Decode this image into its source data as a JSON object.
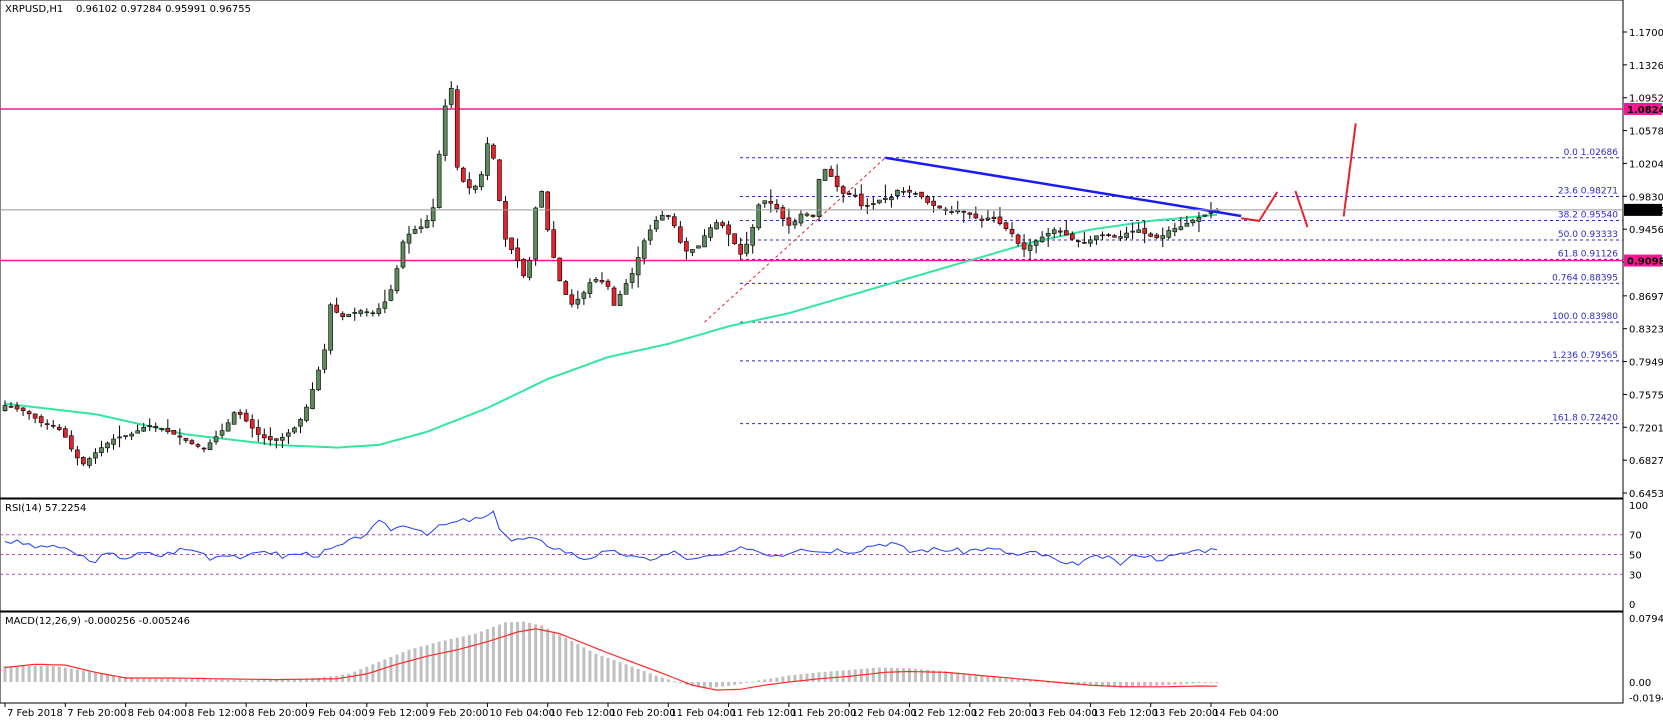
{
  "chart_data": {
    "type": "candlestick",
    "symbol": "XRPUSD,H1",
    "ohlc": "0.96102 0.97284 0.95991 0.96755",
    "current_price": 0.96755,
    "current_price_label": "0.96755",
    "colors": {
      "bull": "#5b8a5b",
      "bear": "#e8212b",
      "ma": "#33e6a0",
      "hline": "#ff1493",
      "trend": "#1a1aff",
      "fib": "#2b2bc8",
      "rsi": "#1e3cff",
      "macd_signal": "#ff2a2a",
      "macd_hist": "#c0c0c0",
      "arrow": "#e8212b"
    },
    "price_axis": {
      "ylim": [
        0.6453,
        1.1963
      ],
      "ticks": [
        "1.17000",
        "1.13260",
        "1.09520",
        "1.05780",
        "1.02040",
        "0.98300",
        "0.94560",
        "0.90820",
        "0.86970",
        "0.83230",
        "0.79490",
        "0.75750",
        "0.72010",
        "0.68270",
        "0.64530"
      ]
    },
    "horizontal_lines": [
      {
        "value": 1.08242,
        "label": "1.08242"
      },
      {
        "value": 0.90988,
        "label": "0.90988"
      }
    ],
    "fib_levels": [
      {
        "ratio": "0.0",
        "value": 1.02686,
        "text": "0.0  1.02686"
      },
      {
        "ratio": "23.6",
        "value": 0.98271,
        "text": "23.6  0.98271"
      },
      {
        "ratio": "38.2",
        "value": 0.9554,
        "text": "38.2  0.95540"
      },
      {
        "ratio": "50.0",
        "value": 0.93333,
        "text": "50.0  0.93333"
      },
      {
        "ratio": "61.8",
        "value": 0.91126,
        "text": "61.8  0.91126"
      },
      {
        "ratio": "0.764",
        "value": 0.88395,
        "text": "0.764  0.88395"
      },
      {
        "ratio": "100.0",
        "value": 0.8398,
        "text": "100.0  0.83980"
      },
      {
        "ratio": "1.236",
        "value": 0.79565,
        "text": "1.236  0.79565"
      },
      {
        "ratio": "161.8",
        "value": 0.7242,
        "text": "161.8  0.72420"
      }
    ],
    "fib_swing": {
      "from": {
        "bar": 116,
        "value": 0.8398
      },
      "to": {
        "bar": 146,
        "value": 1.02686
      }
    },
    "trendline": {
      "from": {
        "bar": 146,
        "value": 1.02686
      },
      "to": {
        "bar": 205,
        "value": 0.9606
      }
    },
    "forecast_path": [
      {
        "bar": 205,
        "value": 0.958
      },
      {
        "bar": 208,
        "value": 0.955
      },
      {
        "bar": 211,
        "value": 0.988
      }
    ],
    "forecast_segments": [
      [
        {
          "bar": 214,
          "value": 0.989
        },
        {
          "bar": 216,
          "value": 0.948
        }
      ],
      [
        {
          "bar": 222,
          "value": 0.96
        },
        {
          "bar": 224,
          "value": 1.066
        }
      ]
    ],
    "x_axis": {
      "ticks": [
        {
          "bar": 0,
          "label": "7 Feb 2018"
        },
        {
          "bar": 10,
          "label": "7 Feb 20:00"
        },
        {
          "bar": 20,
          "label": "8 Feb 04:00"
        },
        {
          "bar": 30,
          "label": "8 Feb 12:00"
        },
        {
          "bar": 40,
          "label": "8 Feb 20:00"
        },
        {
          "bar": 50,
          "label": "9 Feb 04:00"
        },
        {
          "bar": 60,
          "label": "9 Feb 12:00"
        },
        {
          "bar": 70,
          "label": "9 Feb 20:00"
        },
        {
          "bar": 80,
          "label": "10 Feb 04:00"
        },
        {
          "bar": 90,
          "label": "10 Feb 12:00"
        },
        {
          "bar": 100,
          "label": "10 Feb 20:00"
        },
        {
          "bar": 110,
          "label": "11 Feb 04:00"
        },
        {
          "bar": 120,
          "label": "11 Feb 12:00"
        },
        {
          "bar": 130,
          "label": "11 Feb 20:00"
        },
        {
          "bar": 140,
          "label": "12 Feb 04:00"
        },
        {
          "bar": 150,
          "label": "12 Feb 12:00"
        },
        {
          "bar": 160,
          "label": "12 Feb 20:00"
        },
        {
          "bar": 170,
          "label": "13 Feb 04:00"
        },
        {
          "bar": 180,
          "label": "13 Feb 12:00"
        },
        {
          "bar": 190,
          "label": "13 Feb 20:00"
        },
        {
          "bar": 200,
          "label": "14 Feb 04:00"
        }
      ]
    },
    "rsi": {
      "label": "RSI(14) 57.2254",
      "ylim": [
        0,
        100
      ],
      "ticks": [
        "100",
        "70",
        "50",
        "30",
        "0"
      ],
      "levels": [
        70,
        50,
        30
      ],
      "anchors": [
        [
          0,
          64
        ],
        [
          4,
          60
        ],
        [
          6,
          56
        ],
        [
          8,
          60
        ],
        [
          10,
          54
        ],
        [
          13,
          48
        ],
        [
          14,
          42
        ],
        [
          17,
          50
        ],
        [
          20,
          47
        ],
        [
          23,
          51
        ],
        [
          26,
          49
        ],
        [
          29,
          55
        ],
        [
          32,
          54
        ],
        [
          34,
          47
        ],
        [
          37,
          51
        ],
        [
          40,
          46
        ],
        [
          43,
          55
        ],
        [
          46,
          48
        ],
        [
          49,
          51
        ],
        [
          52,
          50
        ],
        [
          55,
          57
        ],
        [
          58,
          65
        ],
        [
          61,
          76
        ],
        [
          62,
          82
        ],
        [
          64,
          76
        ],
        [
          67,
          80
        ],
        [
          70,
          72
        ],
        [
          73,
          80
        ],
        [
          76,
          84
        ],
        [
          79,
          86
        ],
        [
          81,
          91
        ],
        [
          82,
          78
        ],
        [
          84,
          64
        ],
        [
          87,
          66
        ],
        [
          90,
          60
        ],
        [
          93,
          53
        ],
        [
          96,
          46
        ],
        [
          99,
          51
        ],
        [
          102,
          52
        ],
        [
          105,
          45
        ],
        [
          108,
          47
        ],
        [
          111,
          52
        ],
        [
          114,
          44
        ],
        [
          117,
          48
        ],
        [
          120,
          50
        ],
        [
          123,
          58
        ],
        [
          126,
          51
        ],
        [
          129,
          50
        ],
        [
          132,
          58
        ],
        [
          135,
          53
        ],
        [
          138,
          55
        ],
        [
          141,
          54
        ],
        [
          144,
          60
        ],
        [
          147,
          62
        ],
        [
          150,
          53
        ],
        [
          153,
          55
        ],
        [
          156,
          55
        ],
        [
          159,
          53
        ],
        [
          162,
          56
        ],
        [
          165,
          54
        ],
        [
          168,
          49
        ],
        [
          171,
          52
        ],
        [
          174,
          45
        ],
        [
          176,
          38
        ],
        [
          179,
          44
        ],
        [
          182,
          48
        ],
        [
          185,
          41
        ],
        [
          188,
          51
        ],
        [
          191,
          46
        ],
        [
          194,
          48
        ],
        [
          197,
          54
        ],
        [
          200,
          55
        ],
        [
          201,
          57.2254
        ]
      ]
    },
    "macd": {
      "label": "MACD(12,26,9) -0.000256 -0.005246",
      "ylim": [
        -0.0194,
        0.0828
      ],
      "ticks": [
        "0.079422",
        "0.00",
        "-0.019405"
      ],
      "main_anchors": [
        [
          0,
          0.02
        ],
        [
          8,
          0.02
        ],
        [
          15,
          0.012
        ],
        [
          22,
          0.004
        ],
        [
          30,
          0.004
        ],
        [
          40,
          0.002
        ],
        [
          52,
          0.005
        ],
        [
          57,
          0.01
        ],
        [
          62,
          0.025
        ],
        [
          67,
          0.04
        ],
        [
          72,
          0.05
        ],
        [
          78,
          0.06
        ],
        [
          83,
          0.074
        ],
        [
          86,
          0.075
        ],
        [
          89,
          0.07
        ],
        [
          93,
          0.055
        ],
        [
          98,
          0.035
        ],
        [
          103,
          0.022
        ],
        [
          108,
          0.008
        ],
        [
          113,
          -0.004
        ],
        [
          116,
          -0.008
        ],
        [
          120,
          -0.005
        ],
        [
          125,
          0.002
        ],
        [
          130,
          0.008
        ],
        [
          135,
          0.012
        ],
        [
          140,
          0.015
        ],
        [
          145,
          0.018
        ],
        [
          150,
          0.017
        ],
        [
          155,
          0.014
        ],
        [
          160,
          0.01
        ],
        [
          165,
          0.006
        ],
        [
          170,
          0.003
        ],
        [
          175,
          -0.002
        ],
        [
          180,
          -0.005
        ],
        [
          185,
          -0.007
        ],
        [
          190,
          -0.005
        ],
        [
          195,
          -0.003
        ],
        [
          200,
          0.0
        ],
        [
          201,
          -0.000256
        ]
      ],
      "signal_anchors": [
        [
          0,
          0.018
        ],
        [
          5,
          0.022
        ],
        [
          10,
          0.021
        ],
        [
          15,
          0.012
        ],
        [
          20,
          0.005
        ],
        [
          28,
          0.005
        ],
        [
          35,
          0.004
        ],
        [
          45,
          0.003
        ],
        [
          55,
          0.004
        ],
        [
          60,
          0.01
        ],
        [
          65,
          0.022
        ],
        [
          70,
          0.032
        ],
        [
          75,
          0.04
        ],
        [
          80,
          0.05
        ],
        [
          85,
          0.062
        ],
        [
          88,
          0.066
        ],
        [
          92,
          0.06
        ],
        [
          96,
          0.048
        ],
        [
          100,
          0.036
        ],
        [
          105,
          0.022
        ],
        [
          110,
          0.008
        ],
        [
          114,
          -0.004
        ],
        [
          118,
          -0.01
        ],
        [
          122,
          -0.009
        ],
        [
          126,
          -0.004
        ],
        [
          130,
          0.0
        ],
        [
          135,
          0.004
        ],
        [
          140,
          0.007
        ],
        [
          146,
          0.012
        ],
        [
          150,
          0.013
        ],
        [
          156,
          0.012
        ],
        [
          162,
          0.008
        ],
        [
          168,
          0.004
        ],
        [
          174,
          0.0
        ],
        [
          180,
          -0.004
        ],
        [
          186,
          -0.006
        ],
        [
          192,
          -0.006
        ],
        [
          198,
          -0.005
        ],
        [
          201,
          -0.005246
        ]
      ]
    }
  }
}
